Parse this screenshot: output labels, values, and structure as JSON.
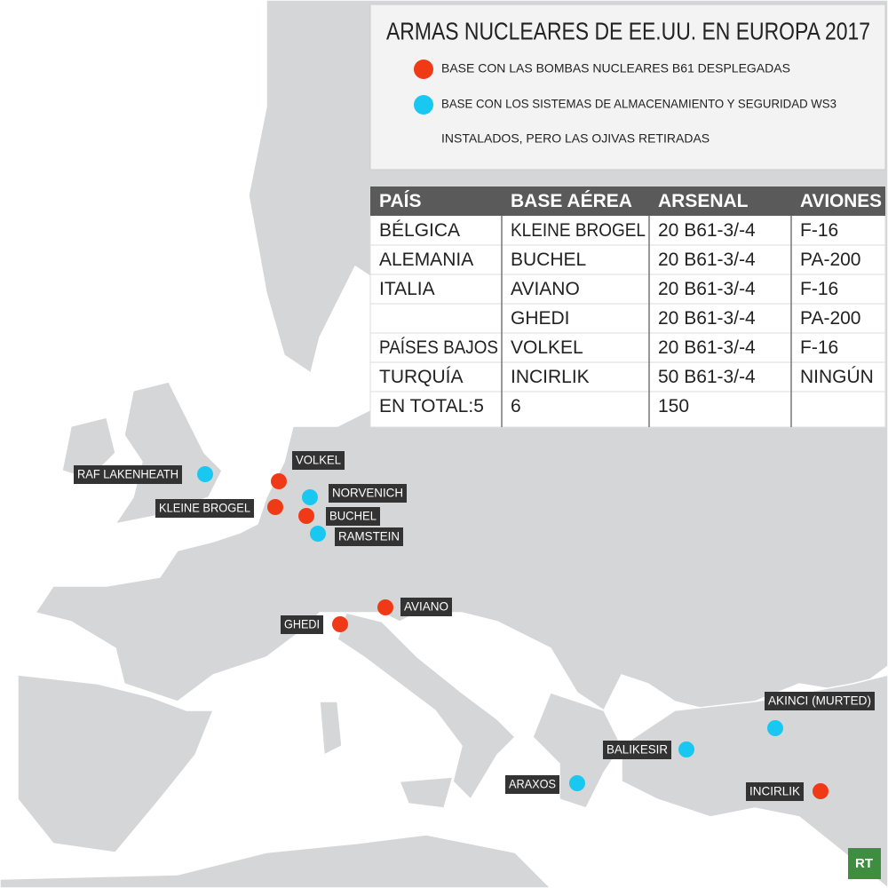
{
  "title": "ARMAS NUCLEARES DE EE.UU. EN EUROPA 2017",
  "legend": [
    {
      "color": "#f03a17",
      "lines": [
        "BASE CON LAS BOMBAS NUCLEARES B61 DESPLEGADAS"
      ]
    },
    {
      "color": "#19c8f0",
      "lines": [
        "BASE CON LOS SISTEMAS DE ALMACENAMIENTO Y SEGURIDAD WS3",
        "INSTALADOS, PERO LAS OJIVAS RETIRADAS"
      ]
    }
  ],
  "table": {
    "header": [
      "PAÍS",
      "BASE AÉREA",
      "ARSENAL",
      "AVIONES"
    ],
    "rows": [
      [
        "BÉLGICA",
        "KLEINE BROGEL",
        "20 B61-3/-4",
        "F-16"
      ],
      [
        "ALEMANIA",
        "BUCHEL",
        "20 B61-3/-4",
        "PA-200"
      ],
      [
        "ITALIA",
        "AVIANO",
        "20 B61-3/-4",
        "F-16"
      ],
      [
        null,
        "GHEDI",
        "20 B61-3/-4",
        "PA-200"
      ],
      [
        "PAÍSES BAJOS",
        "VOLKEL",
        "20 B61-3/-4",
        "F-16"
      ],
      [
        "TURQUÍA",
        "INCIRLIK",
        "50 B61-3/-4",
        "NINGÚN"
      ],
      [
        "EN TOTAL:5",
        "6",
        "150",
        null
      ]
    ]
  },
  "bases": [
    {
      "label": "RAF LAKENHEATH",
      "color": "#19c8f0"
    },
    {
      "label": "VOLKEL",
      "color": "#f03a17"
    },
    {
      "label": "NORVENICH",
      "color": "#19c8f0"
    },
    {
      "label": "KLEINE BROGEL",
      "color": "#f03a17"
    },
    {
      "label": "BUCHEL",
      "color": "#f03a17"
    },
    {
      "label": "RAMSTEIN",
      "color": "#19c8f0"
    },
    {
      "label": "AVIANO",
      "color": "#f03a17"
    },
    {
      "label": "GHEDI",
      "color": "#f03a17"
    },
    {
      "label": "AKINCI (MURTED)",
      "color": "#19c8f0"
    },
    {
      "label": "BALIKESIR",
      "color": "#19c8f0"
    },
    {
      "label": "ARAXOS",
      "color": "#19c8f0"
    },
    {
      "label": "INCIRLIK",
      "color": "#f03a17"
    }
  ],
  "logo": "RT"
}
